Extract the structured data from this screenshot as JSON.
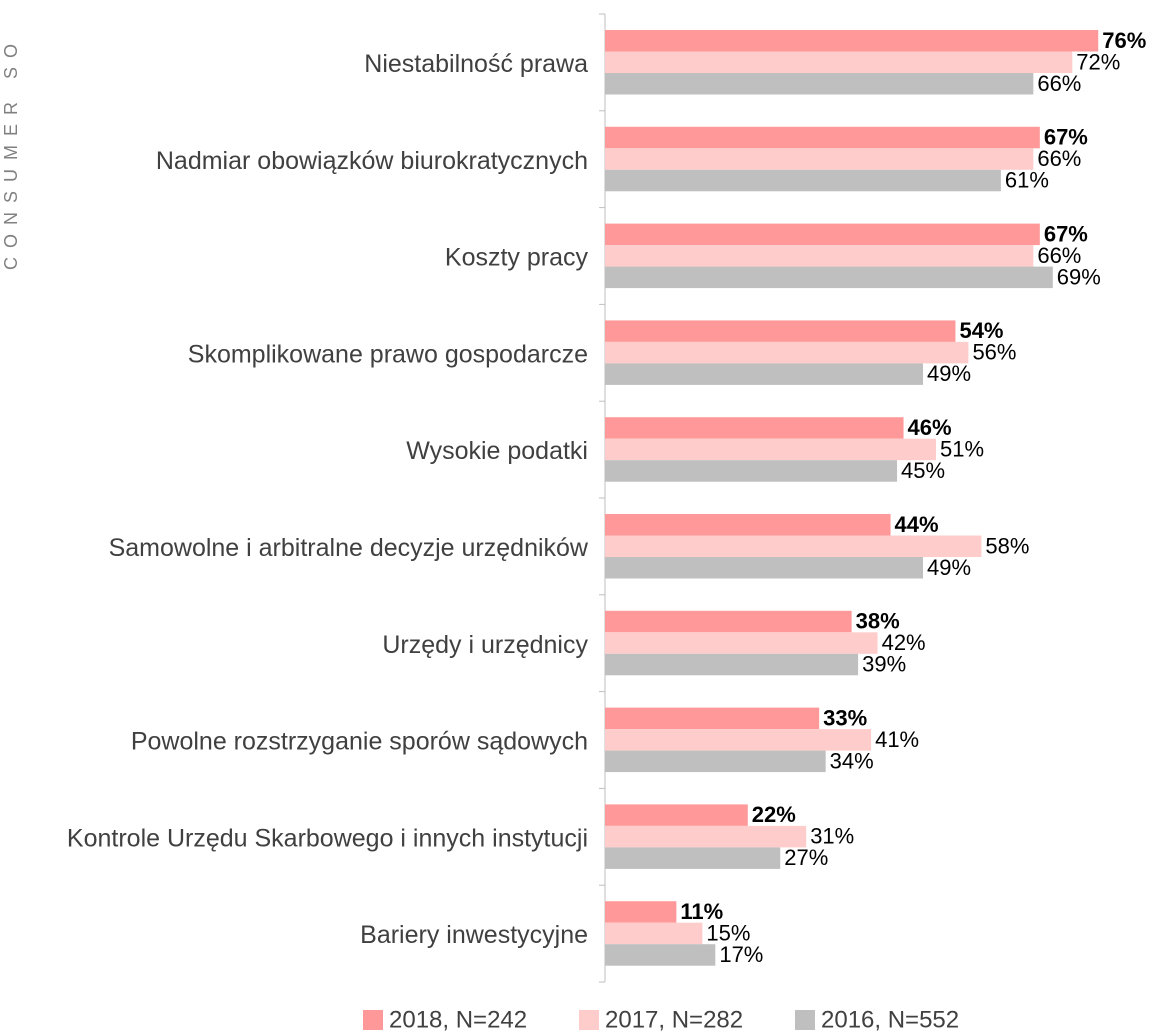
{
  "side_text": "CONSUMER SO",
  "chart_data": {
    "type": "hbar",
    "categories": [
      "Niestabilność prawa",
      "Nadmiar obowiązków biurokratycznych",
      "Koszty pracy",
      "Skomplikowane prawo gospodarcze",
      "Wysokie podatki",
      "Samowolne i arbitralne decyzje urzędników",
      "Urzędy i urzędnicy",
      "Powolne rozstrzyganie sporów sądowych",
      "Kontrole Urzędu Skarbowego i innych instytucji",
      "Bariery inwestycyjne"
    ],
    "series": [
      {
        "name": "2018, N=242",
        "color": "#ff9999",
        "values": [
          76,
          67,
          67,
          54,
          46,
          44,
          38,
          33,
          22,
          11
        ],
        "value_labels": [
          "76%",
          "67%",
          "67%",
          "54%",
          "46%",
          "44%",
          "38%",
          "33%",
          "22%",
          "11%"
        ]
      },
      {
        "name": "2017, N=282",
        "color": "#ffcccc",
        "values": [
          72,
          66,
          66,
          56,
          51,
          58,
          42,
          41,
          31,
          15
        ],
        "value_labels": [
          "72%",
          "66%",
          "66%",
          "56%",
          "51%",
          "58%",
          "42%",
          "41%",
          "31%",
          "15%"
        ]
      },
      {
        "name": "2016, N=552",
        "color": "#bfbfbf",
        "values": [
          66,
          61,
          69,
          49,
          45,
          49,
          39,
          34,
          27,
          17
        ],
        "value_labels": [
          "66%",
          "61%",
          "69%",
          "49%",
          "45%",
          "49%",
          "39%",
          "34%",
          "27%",
          "17%"
        ]
      }
    ],
    "xlim": [
      0,
      100
    ]
  }
}
